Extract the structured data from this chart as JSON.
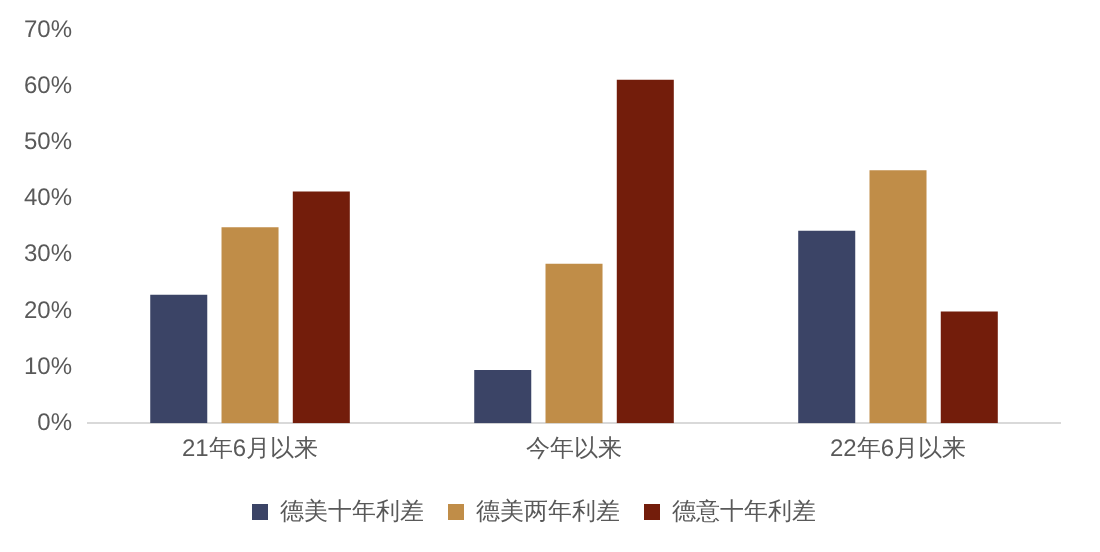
{
  "chart_data": {
    "type": "bar",
    "categories": [
      "21年6月以来",
      "今年以来",
      "22年6月以来"
    ],
    "series": [
      {
        "name": "德美十年利差",
        "color": "#3b4466",
        "values": [
          22.9,
          9.5,
          34.3
        ]
      },
      {
        "name": "德美两年利差",
        "color": "#c08d48",
        "values": [
          34.9,
          28.4,
          45.1
        ]
      },
      {
        "name": "德意十年利差",
        "color": "#731d0b",
        "values": [
          41.3,
          61.2,
          19.9
        ]
      }
    ],
    "ylim": [
      0,
      70
    ],
    "yticks": [
      {
        "value": 0,
        "label": "0%"
      },
      {
        "value": 10,
        "label": "10%"
      },
      {
        "value": 20,
        "label": "20%"
      },
      {
        "value": 30,
        "label": "30%"
      },
      {
        "value": 40,
        "label": "40%"
      },
      {
        "value": 50,
        "label": "50%"
      },
      {
        "value": 60,
        "label": "60%"
      },
      {
        "value": 70,
        "label": "70%"
      }
    ],
    "grid": false,
    "legend": "bottom"
  }
}
